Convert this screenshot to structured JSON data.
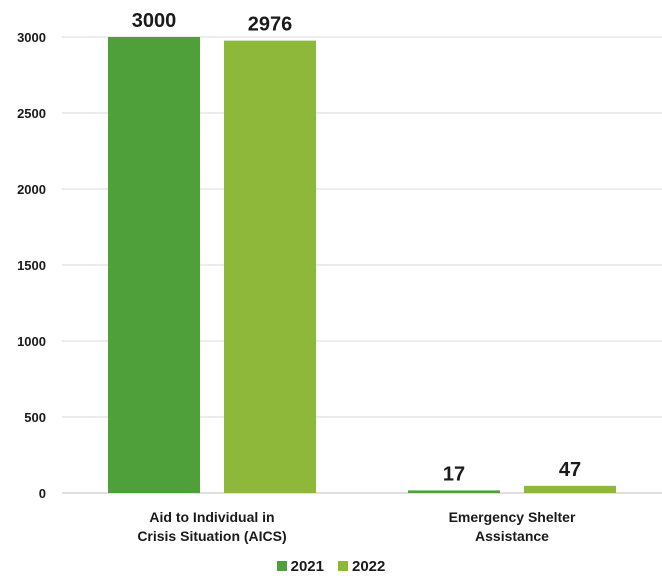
{
  "chart_data": {
    "type": "bar",
    "title": "",
    "xlabel": "",
    "ylabel": "",
    "categories": [
      [
        "Aid to Individual in",
        "Crisis Situation (AICS)"
      ],
      [
        "Emergency Shelter",
        "Assistance"
      ]
    ],
    "series": [
      {
        "name": "2021",
        "values": [
          3000,
          17
        ],
        "color": "#4f9f3b"
      },
      {
        "name": "2022",
        "values": [
          2976,
          47
        ],
        "color": "#8db83a"
      }
    ],
    "ylim": [
      0,
      3000
    ],
    "yticks": [
      0,
      500,
      1000,
      1500,
      2000,
      2500,
      3000
    ],
    "grid": true,
    "legend": "bottom"
  }
}
